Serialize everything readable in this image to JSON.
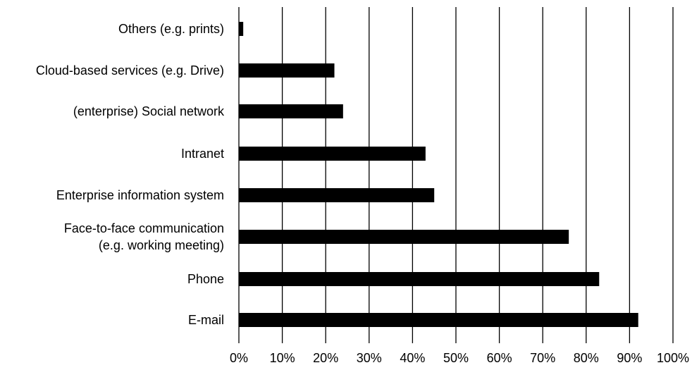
{
  "chart_data": {
    "type": "bar",
    "orientation": "horizontal",
    "categories": [
      [
        "Others (e.g. prints)"
      ],
      [
        "Cloud-based services (e.g. Drive)"
      ],
      [
        "(enterprise) Social network"
      ],
      [
        "Intranet"
      ],
      [
        "Enterprise information system"
      ],
      [
        "Face-to-face communication",
        "(e.g. working meeting)"
      ],
      [
        "Phone"
      ],
      [
        "E-mail"
      ]
    ],
    "values": [
      1,
      22,
      24,
      43,
      45,
      76,
      83,
      92
    ],
    "xlim": [
      0,
      100
    ],
    "xticks": [
      "0%",
      "10%",
      "20%",
      "30%",
      "40%",
      "50%",
      "60%",
      "70%",
      "80%",
      "90%",
      "100%"
    ],
    "grid": "vertical",
    "bar_color": "#000000",
    "grid_color": "#000000"
  }
}
